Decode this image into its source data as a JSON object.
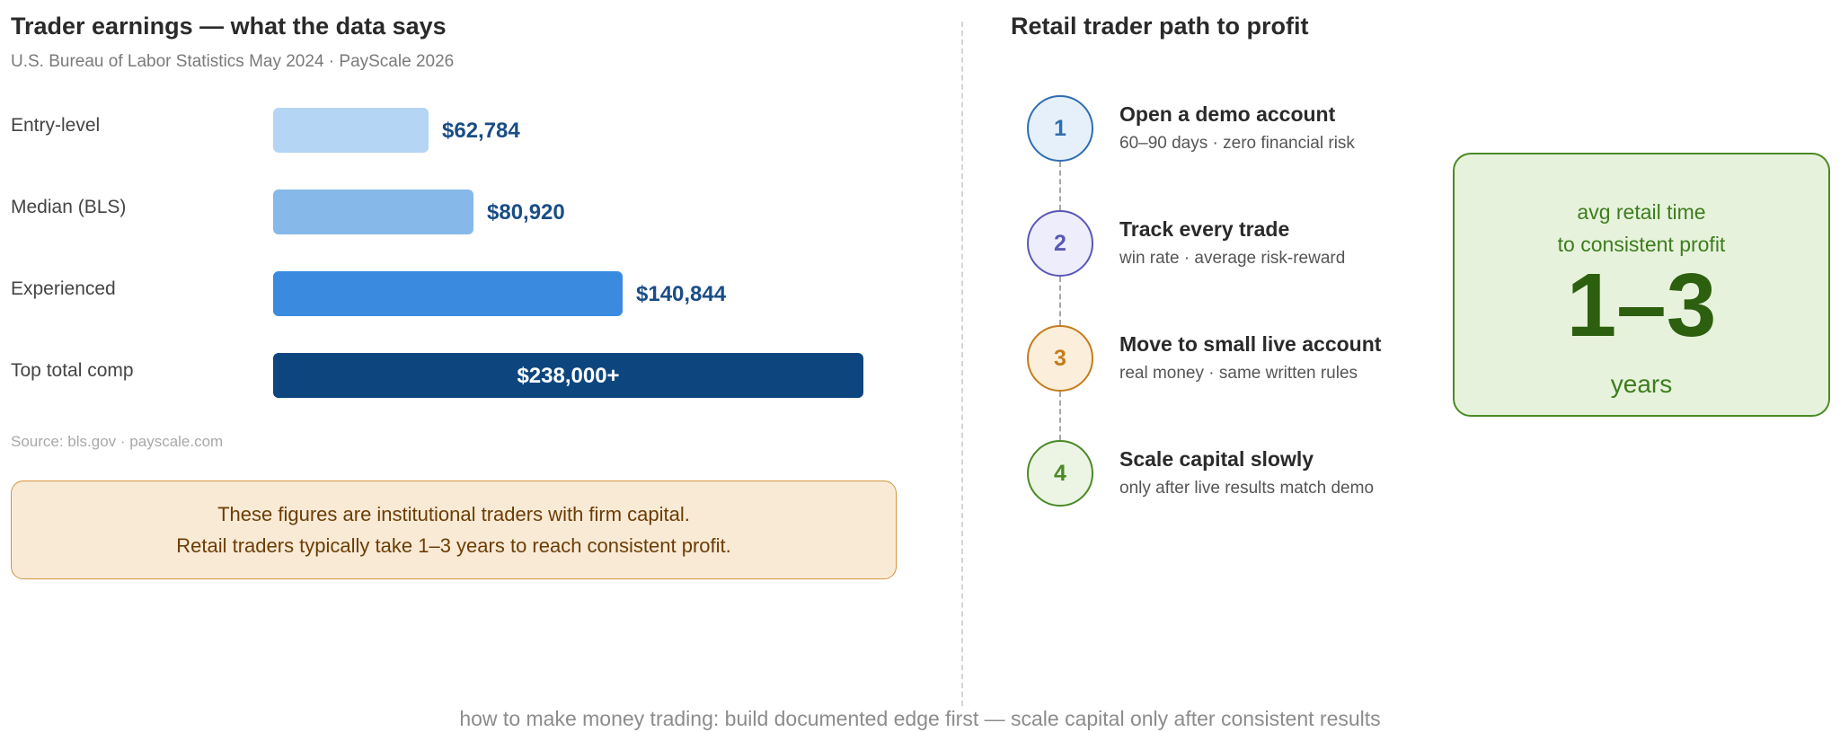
{
  "left_panel": {
    "title": "Trader earnings — what the data says",
    "subtitle": "U.S. Bureau of Labor Statistics May 2024 · PayScale 2026",
    "source": "Source: bls.gov · payscale.com",
    "note_lines": [
      "These figures are institutional traders with firm capital.",
      "Retail traders typically take 1–3 years to reach consistent profit."
    ]
  },
  "chart_data": {
    "type": "bar",
    "orientation": "horizontal",
    "title": "Trader earnings — what the data says",
    "subtitle": "U.S. Bureau of Labor Statistics May 2024 · PayScale 2026",
    "categories": [
      "Entry-level",
      "Median (BLS)",
      "Experienced",
      "Top total comp"
    ],
    "values": [
      62784,
      80920,
      140844,
      238000
    ],
    "value_labels": [
      "$62,784",
      "$80,920",
      "$140,844",
      "$238,000+"
    ],
    "colors": [
      "#b5d5f4",
      "#87b8ea",
      "#3a8be0",
      "#0d467f"
    ],
    "xlim": [
      0,
      238000
    ],
    "grid": false,
    "legend": "none"
  },
  "right_panel": {
    "title": "Retail trader path to profit",
    "steps": [
      {
        "number": "1",
        "title": "Open a demo account",
        "desc": "60–90 days · zero financial risk",
        "color": "#2f6db0",
        "fill": "#e5f0fb"
      },
      {
        "number": "2",
        "title": "Track every trade",
        "desc": "win rate · average risk-reward",
        "color": "#5a58b8",
        "fill": "#eeedfb"
      },
      {
        "number": "3",
        "title": "Move to small live account",
        "desc": "real money · same written rules",
        "color": "#c47d1c",
        "fill": "#fbeedb"
      },
      {
        "number": "4",
        "title": "Scale capital slowly",
        "desc": "only after live results match demo",
        "color": "#4a8a26",
        "fill": "#ecf5e3"
      }
    ],
    "stat": {
      "label_line1": "avg retail time",
      "label_line2": "to consistent profit",
      "value": "1–3",
      "unit": "years"
    }
  },
  "footer": "how to make money trading: build documented edge first — scale capital only after consistent results"
}
